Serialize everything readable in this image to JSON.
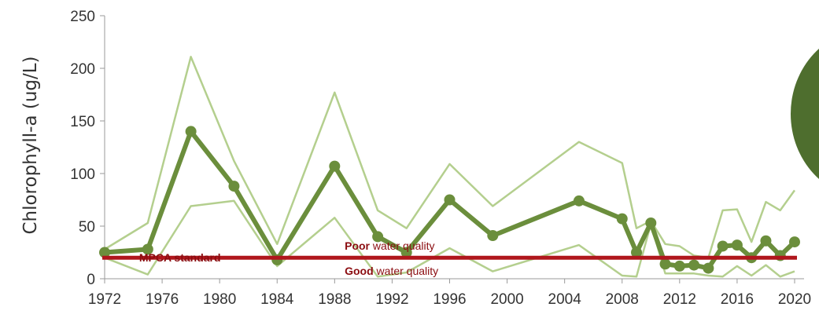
{
  "chart_data": {
    "type": "line",
    "title": "",
    "xlabel": "",
    "ylabel": "Chlorophyll-a (ug/L)",
    "xlim": [
      1972,
      2020
    ],
    "ylim": [
      0,
      250
    ],
    "x_ticks": [
      "1972",
      "1976",
      "1980",
      "1984",
      "1988",
      "1992",
      "1996",
      "2000",
      "2004",
      "2008",
      "2012",
      "2016",
      "2020"
    ],
    "y_ticks": [
      "0",
      "50",
      "100",
      "150",
      "200",
      "250"
    ],
    "grid": false,
    "colors": {
      "mean": "#6b8e3c",
      "range": "#b4cf8e",
      "standard": "#b0161c",
      "standard_text": "#8b0c10",
      "circle": "#4e6e2e"
    },
    "series": [
      {
        "role": "mean",
        "x": [
          1972,
          1975,
          1978,
          1981,
          1984,
          1988,
          1991,
          1993,
          1996,
          1999,
          2005,
          2008,
          2009,
          2010,
          2011,
          2012,
          2013,
          2014,
          2015,
          2016,
          2017,
          2018,
          2019,
          2020
        ],
        "y": [
          25,
          28,
          140,
          88,
          18,
          107,
          40,
          25,
          75,
          41,
          74,
          57,
          25,
          53,
          14,
          12,
          13,
          10,
          31,
          32,
          20,
          36,
          22,
          35
        ]
      },
      {
        "role": "upper",
        "x": [
          1972,
          1975,
          1978,
          1981,
          1984,
          1988,
          1991,
          1993,
          1996,
          1999,
          2005,
          2008,
          2009,
          2010,
          2011,
          2012,
          2013,
          2014,
          2015,
          2016,
          2017,
          2018,
          2019,
          2020
        ],
        "y": [
          28,
          53,
          211,
          112,
          33,
          177,
          65,
          48,
          109,
          69,
          130,
          110,
          48,
          55,
          33,
          31,
          22,
          20,
          65,
          66,
          35,
          73,
          65,
          84
        ]
      },
      {
        "role": "lower",
        "x": [
          1972,
          1975,
          1978,
          1981,
          1984,
          1988,
          1991,
          1993,
          1996,
          1999,
          2005,
          2008,
          2009,
          2010,
          2011,
          2012,
          2013,
          2014,
          2015,
          2016,
          2017,
          2018,
          2019,
          2020
        ],
        "y": [
          20,
          4,
          69,
          74,
          12,
          58,
          2,
          6,
          29,
          7,
          32,
          3,
          2,
          52,
          5,
          5,
          5,
          3,
          2,
          12,
          3,
          13,
          2,
          7
        ]
      }
    ],
    "standard": {
      "value": 20,
      "label": "MPCA standard"
    },
    "annotations": {
      "poor": {
        "bold": "Poor",
        "rest": " water quality"
      },
      "good": {
        "bold": "Good",
        "rest": " water quality"
      }
    }
  }
}
